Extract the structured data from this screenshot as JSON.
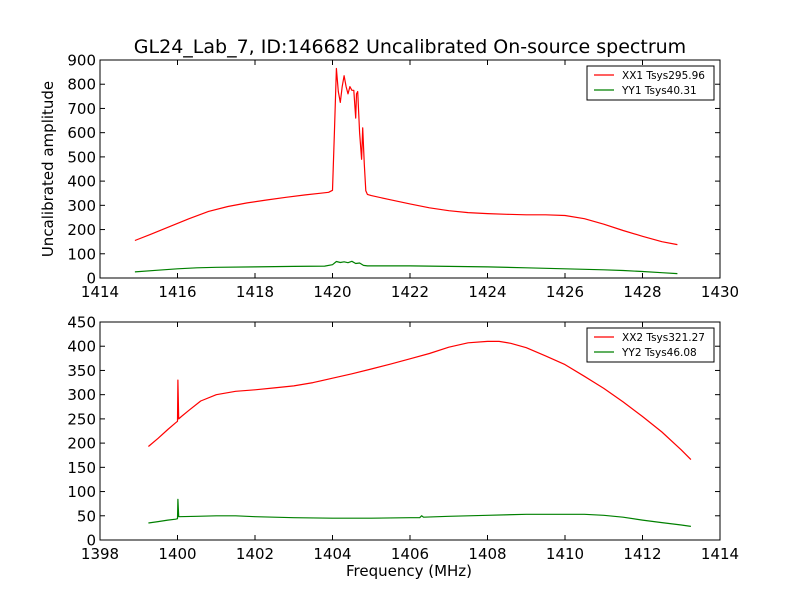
{
  "figure": {
    "title": "GL24_Lab_7, ID:146682 Uncalibrated On-source spectrum"
  },
  "chart_data": [
    {
      "type": "line",
      "id": "top",
      "title": "GL24_Lab_7, ID:146682 Uncalibrated On-source spectrum",
      "xlabel": "",
      "ylabel": "Uncalibrated amplitude",
      "xlim": [
        1414,
        1430
      ],
      "ylim": [
        0,
        900
      ],
      "xticks": [
        1414,
        1416,
        1418,
        1420,
        1422,
        1424,
        1426,
        1428,
        1430
      ],
      "yticks": [
        0,
        100,
        200,
        300,
        400,
        500,
        600,
        700,
        800,
        900
      ],
      "grid": false,
      "legend_position": "top-right",
      "series": [
        {
          "name": "XX1 Tsys295.96",
          "color": "#ff0000",
          "x": [
            1414.9,
            1415.3,
            1415.8,
            1416.3,
            1416.8,
            1417.3,
            1417.8,
            1418.3,
            1418.8,
            1419.3,
            1419.7,
            1419.9,
            1420.0,
            1420.05,
            1420.1,
            1420.15,
            1420.2,
            1420.25,
            1420.3,
            1420.35,
            1420.4,
            1420.45,
            1420.5,
            1420.55,
            1420.6,
            1420.62,
            1420.65,
            1420.7,
            1420.75,
            1420.78,
            1420.82,
            1420.86,
            1420.9,
            1421.0,
            1421.5,
            1422.0,
            1422.5,
            1423.0,
            1423.5,
            1424.0,
            1424.5,
            1425.0,
            1425.5,
            1426.0,
            1426.5,
            1427.0,
            1427.5,
            1428.0,
            1428.5,
            1428.9
          ],
          "y": [
            155,
            180,
            212,
            245,
            275,
            295,
            310,
            322,
            333,
            343,
            350,
            354,
            362,
            600,
            865,
            770,
            725,
            790,
            835,
            790,
            760,
            790,
            775,
            775,
            660,
            760,
            770,
            600,
            490,
            620,
            470,
            360,
            345,
            340,
            323,
            306,
            290,
            278,
            270,
            266,
            263,
            261,
            261,
            258,
            245,
            222,
            196,
            172,
            150,
            138
          ]
        },
        {
          "name": "YY1 Tsys40.31",
          "color": "#008000",
          "x": [
            1414.9,
            1415.5,
            1416.0,
            1416.5,
            1417.0,
            1418.0,
            1419.0,
            1419.8,
            1420.0,
            1420.1,
            1420.2,
            1420.3,
            1420.4,
            1420.5,
            1420.6,
            1420.7,
            1420.8,
            1420.9,
            1421.0,
            1422.0,
            1423.0,
            1424.0,
            1425.0,
            1426.0,
            1427.0,
            1427.5,
            1428.0,
            1428.5,
            1428.9
          ],
          "y": [
            25,
            32,
            38,
            42,
            44,
            46,
            48,
            49,
            55,
            68,
            64,
            67,
            63,
            69,
            60,
            62,
            52,
            50,
            50,
            50,
            48,
            46,
            42,
            38,
            34,
            31,
            27,
            22,
            18
          ]
        }
      ]
    },
    {
      "type": "line",
      "id": "bottom",
      "title": "",
      "xlabel": "Frequency (MHz)",
      "ylabel": "",
      "xlim": [
        1398,
        1414
      ],
      "ylim": [
        0,
        450
      ],
      "xticks": [
        1398,
        1400,
        1402,
        1404,
        1406,
        1408,
        1410,
        1412,
        1414
      ],
      "yticks": [
        0,
        50,
        100,
        150,
        200,
        250,
        300,
        350,
        400,
        450
      ],
      "grid": false,
      "legend_position": "top-right",
      "series": [
        {
          "name": "XX2 Tsys321.27",
          "color": "#ff0000",
          "x": [
            1399.25,
            1399.5,
            1399.75,
            1399.95,
            1400.0,
            1400.01,
            1400.03,
            1400.1,
            1400.3,
            1400.6,
            1401.0,
            1401.5,
            1402.0,
            1402.5,
            1403.0,
            1403.5,
            1404.0,
            1404.5,
            1405.0,
            1405.5,
            1406.0,
            1406.5,
            1407.0,
            1407.5,
            1408.0,
            1408.3,
            1408.6,
            1409.0,
            1409.5,
            1410.0,
            1410.5,
            1411.0,
            1411.5,
            1412.0,
            1412.5,
            1413.0,
            1413.25
          ],
          "y": [
            193,
            210,
            228,
            242,
            245,
            330,
            250,
            255,
            268,
            287,
            300,
            307,
            310,
            314,
            318,
            325,
            334,
            343,
            353,
            363,
            374,
            385,
            398,
            407,
            410,
            410,
            406,
            397,
            380,
            362,
            338,
            313,
            285,
            255,
            223,
            186,
            166
          ]
        },
        {
          "name": "YY2 Tsys46.08",
          "color": "#008000",
          "x": [
            1399.25,
            1399.5,
            1399.75,
            1399.95,
            1400.0,
            1400.01,
            1400.03,
            1400.5,
            1401.0,
            1401.5,
            1402.0,
            1403.0,
            1404.0,
            1405.0,
            1406.0,
            1406.25,
            1406.3,
            1406.35,
            1407.0,
            1408.0,
            1409.0,
            1410.0,
            1410.5,
            1411.0,
            1411.5,
            1412.0,
            1412.5,
            1413.0,
            1413.25
          ],
          "y": [
            35,
            38,
            41,
            43,
            44,
            84,
            48,
            49,
            50,
            50,
            48,
            46,
            45,
            45,
            46,
            46,
            50,
            47,
            49,
            51,
            53,
            53,
            53,
            51,
            47,
            41,
            36,
            31,
            28
          ]
        }
      ]
    }
  ]
}
